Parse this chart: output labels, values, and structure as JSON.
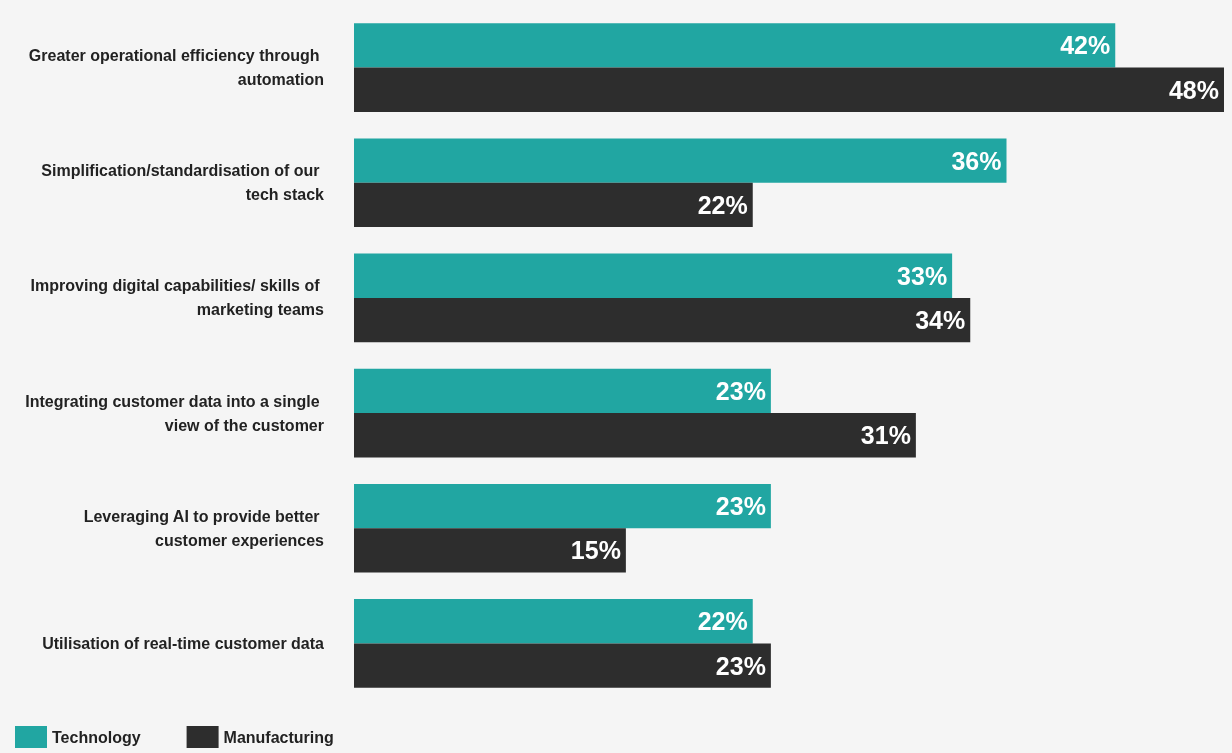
{
  "chart_data": {
    "type": "bar",
    "orientation": "horizontal",
    "legend": "bottom left",
    "categories": [
      "Greater operational efficiency through automation",
      "Simplification/standardisation of our tech stack",
      "Improving digital capabilities/ skills of marketing teams",
      "Integrating customer data into a single view of the customer",
      "Leveraging AI to provide better customer experiences",
      "Utilisation of real-time customer data"
    ],
    "series": [
      {
        "name": "Technology",
        "color": "#21a6a2",
        "values": [
          42,
          36,
          33,
          23,
          23,
          22
        ],
        "value_labels": [
          "42%",
          "36%",
          "33%",
          "23%",
          "23%",
          "22%"
        ]
      },
      {
        "name": "Manufacturing",
        "color": "#2d2d2d",
        "values": [
          48,
          22,
          34,
          31,
          15,
          23
        ],
        "value_labels": [
          "48%",
          "22%",
          "34%",
          "31%",
          "15%",
          "23%"
        ]
      }
    ]
  }
}
